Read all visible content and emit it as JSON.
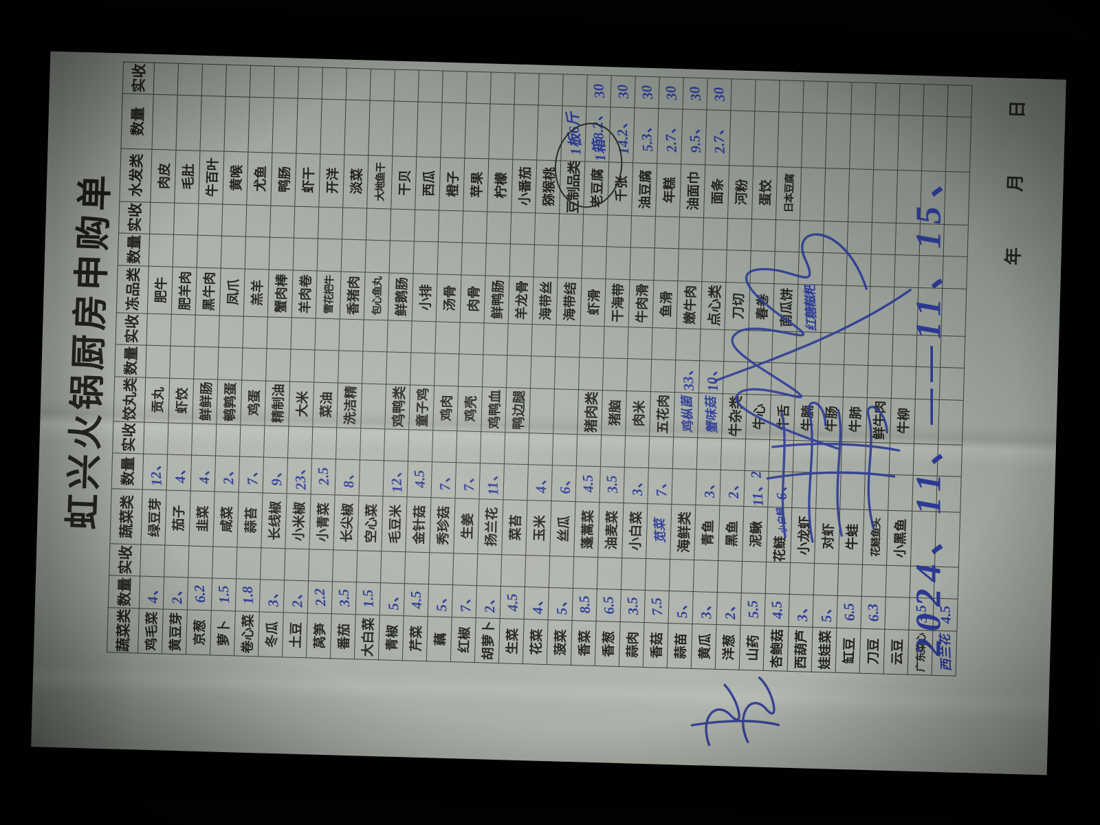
{
  "title": "虹兴火锅厨房申购单",
  "ink_blue": "#2c3a94",
  "paper_color": "#a8ada5",
  "table": {
    "qty_label": "数量",
    "shou_label": "实收",
    "categories": [
      "蔬菜类",
      "蔬菜类",
      "饺丸类",
      "冻品类",
      "水发类"
    ],
    "rows": [
      [
        [
          "鸡毛菜",
          "4、"
        ],
        [
          "绿豆芽",
          "12、"
        ],
        [
          "贡丸"
        ],
        [
          "肥牛"
        ],
        [
          "肉皮"
        ]
      ],
      [
        [
          "黄豆芽",
          "2、"
        ],
        [
          "茄子",
          "4、"
        ],
        [
          "虾饺"
        ],
        [
          "肥羊肉"
        ],
        [
          "毛肚"
        ]
      ],
      [
        [
          "京葱",
          "6.2"
        ],
        [
          "韭菜",
          "4、"
        ],
        [
          "鲜鲜肠"
        ],
        [
          "黑牛肉"
        ],
        [
          "牛百叶"
        ]
      ],
      [
        [
          "萝卜",
          "1.5"
        ],
        [
          "咸菜",
          "2、"
        ],
        [
          "鹌鹑蛋"
        ],
        [
          "凤爪"
        ],
        [
          "黄喉"
        ]
      ],
      [
        [
          "卷心菜",
          "1.8"
        ],
        [
          "蒜苔",
          "7、"
        ],
        [
          "鸡蛋"
        ],
        [
          "羔羊"
        ],
        [
          "尤鱼"
        ]
      ],
      [
        [
          "冬瓜",
          "3、"
        ],
        [
          "长线椒",
          "9、"
        ],
        [
          "精制油"
        ],
        [
          "蟹肉棒"
        ],
        [
          "鸭肠"
        ]
      ],
      [
        [
          "土豆",
          "2、"
        ],
        [
          "小米椒",
          "23、"
        ],
        [
          "大米"
        ],
        [
          "羊肉卷"
        ],
        [
          "虾干"
        ]
      ],
      [
        [
          "莴笋",
          "2.2"
        ],
        [
          "小青菜",
          "2.5"
        ],
        [
          "菜油"
        ],
        [
          "雪花把牛"
        ],
        [
          "开洋"
        ]
      ],
      [
        [
          "番茄",
          "3.5"
        ],
        [
          "长尖椒",
          "8、"
        ],
        [
          "洗洁精"
        ],
        [
          "香猪肉"
        ],
        [
          "淡菜"
        ]
      ],
      [
        [
          "大白菜",
          "1.5"
        ],
        [
          "空心菜"
        ],
        [
          ""
        ],
        [
          "包心鱼丸"
        ],
        [
          "大地鱼干"
        ]
      ],
      [
        [
          "青椒",
          "5、"
        ],
        [
          "毛豆米",
          "12、"
        ],
        [
          "鸡鸭类",
          "",
          "",
          "h"
        ],
        [
          "鲜鹅肠"
        ],
        [
          "干贝"
        ]
      ],
      [
        [
          "芹菜",
          "4.5"
        ],
        [
          "金针菇",
          "4.5"
        ],
        [
          "童子鸡"
        ],
        [
          "小排"
        ],
        [
          "西瓜"
        ]
      ],
      [
        [
          "藕",
          "5、"
        ],
        [
          "秀珍菇",
          "7、"
        ],
        [
          "鸡肉"
        ],
        [
          "汤骨"
        ],
        [
          "橙子"
        ]
      ],
      [
        [
          "红椒",
          "7、"
        ],
        [
          "生姜",
          "7、"
        ],
        [
          "鸡壳"
        ],
        [
          "肉骨"
        ],
        [
          "苹果"
        ]
      ],
      [
        [
          "胡萝卜",
          "2、"
        ],
        [
          "扬兰花",
          "11、"
        ],
        [
          "鸡鸭血"
        ],
        [
          "鲜鸭肠"
        ],
        [
          "柠檬"
        ]
      ],
      [
        [
          "生菜",
          "4.5"
        ],
        [
          "菜苔"
        ],
        [
          "鸭边腿"
        ],
        [
          "羊龙骨"
        ],
        [
          "小番茄"
        ]
      ],
      [
        [
          "花菜",
          "4、"
        ],
        [
          "玉米",
          "4、"
        ],
        [
          ""
        ],
        [
          "海带丝"
        ],
        [
          "猕猴桃"
        ]
      ],
      [
        [
          "菠菜",
          "5、"
        ],
        [
          "丝瓜",
          "6、"
        ],
        [
          ""
        ],
        [
          "海带结"
        ],
        [
          "豆制品类",
          "1板6斤",
          "",
          "h"
        ]
      ],
      [
        [
          "香菜",
          "8.5"
        ],
        [
          "蓬蒿菜",
          "4.5"
        ],
        [
          "猪肉类",
          "",
          "",
          "h"
        ],
        [
          "虾滑"
        ],
        [
          "老豆腐",
          "1箱8.2、",
          "30"
        ]
      ],
      [
        [
          "香葱",
          "6.5"
        ],
        [
          "油麦菜",
          "3.5"
        ],
        [
          "猪脑"
        ],
        [
          "干海带"
        ],
        [
          "千张",
          "14.2、",
          "30"
        ]
      ],
      [
        [
          "蒜肉",
          "3.5"
        ],
        [
          "小白菜",
          "3、"
        ],
        [
          "肉米"
        ],
        [
          "牛肉滑"
        ],
        [
          "油豆腐",
          "5.3、",
          "30"
        ]
      ],
      [
        [
          "香菇",
          "7.5"
        ],
        [
          "苋菜",
          "7、",
          "",
          "w"
        ],
        [
          "五花肉"
        ],
        [
          "鱼滑"
        ],
        [
          "年糕",
          "2.7、",
          "30"
        ]
      ],
      [
        [
          "蒜苗",
          "5、"
        ],
        [
          "海鲜类",
          "",
          "",
          "h"
        ],
        [
          "鸡枞菌",
          "33、",
          "",
          "w"
        ],
        [
          "嫩牛肉"
        ],
        [
          "油面巾",
          "9.5、",
          "30"
        ]
      ],
      [
        [
          "黄瓜",
          "3、"
        ],
        [
          "青鱼",
          "3、"
        ],
        [
          "蟹味菇",
          "10、",
          "",
          "w"
        ],
        [
          "点心类",
          "",
          "",
          "h"
        ],
        [
          "面条",
          "2.7、",
          "30"
        ]
      ],
      [
        [
          "洋葱",
          "2、"
        ],
        [
          "黑鱼",
          "2、"
        ],
        [
          "牛杂类",
          "",
          "",
          "h"
        ],
        [
          "刀切"
        ],
        [
          "河粉"
        ]
      ],
      [
        [
          "山药",
          "5.5"
        ],
        [
          "泥鳅",
          "11、2"
        ],
        [
          "牛心"
        ],
        [
          "春卷"
        ],
        [
          "蛋饺"
        ]
      ],
      [
        [
          "杏鲍菇",
          "4.5"
        ],
        [
          "花鲢",
          "6、",
          "",
          "",
          "小白鲢"
        ],
        [
          "牛舌"
        ],
        [
          "南瓜饼"
        ],
        [
          "日本豆腐"
        ]
      ],
      [
        [
          "西葫芦",
          "3、"
        ],
        [
          "小龙虾"
        ],
        [
          "牛腩"
        ],
        [
          "红糖糍粑",
          "",
          "",
          "w"
        ],
        [
          ""
        ]
      ],
      [
        [
          "娃娃菜",
          "5、"
        ],
        [
          "对虾"
        ],
        [
          "牛肠"
        ],
        [
          ""
        ],
        [
          ""
        ]
      ],
      [
        [
          "缸豆",
          "6.5"
        ],
        [
          "牛蛙"
        ],
        [
          "牛肺"
        ],
        [
          ""
        ],
        [
          ""
        ]
      ],
      [
        [
          "刀豆",
          "6.3"
        ],
        [
          "花鲢鱼头"
        ],
        [
          "鲜牛肉"
        ],
        [
          ""
        ],
        [
          ""
        ]
      ],
      [
        [
          "云豆"
        ],
        [
          "小黑鱼"
        ],
        [
          "牛柳"
        ],
        [
          ""
        ],
        [
          ""
        ]
      ],
      [
        [
          "广东菜心",
          "3.5"
        ],
        [
          ""
        ],
        [
          ""
        ],
        [
          ""
        ],
        [
          ""
        ]
      ],
      [
        [
          "西兰花",
          "4.5",
          "",
          "w"
        ],
        [
          ""
        ],
        [
          ""
        ],
        [
          ""
        ],
        [
          ""
        ]
      ]
    ]
  },
  "annotations": {
    "circled_note_line1": "1板6斤",
    "circled_note_line2": "1箱8.2、30",
    "handwritten_date": "2024、11、——11、15、",
    "date_labels": [
      "年",
      "月",
      "日"
    ],
    "signature_scrawl": "（蓝笔签名涂画）",
    "margin_signature": "（手写签名）"
  }
}
